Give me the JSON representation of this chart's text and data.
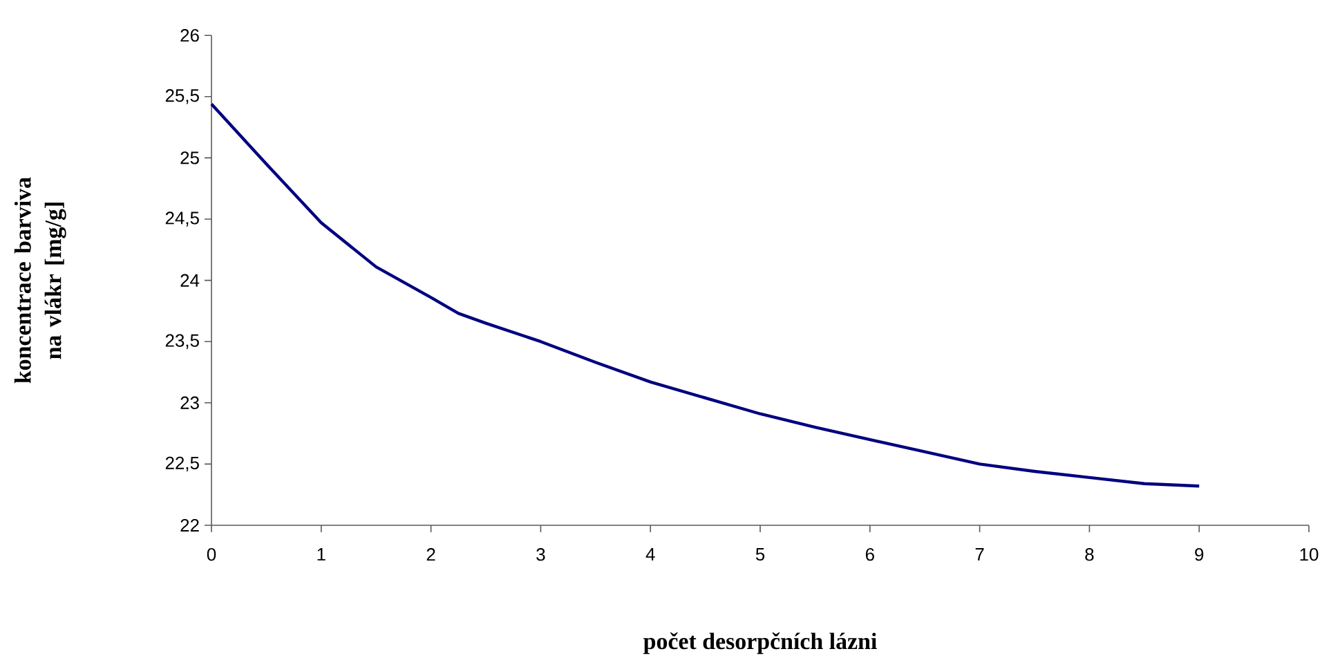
{
  "chart_data": {
    "type": "line",
    "xlabel": "počet desorpčních lázni",
    "ylabel": "koncentrace barviva na vlákr [mg/g]",
    "series": [
      {
        "color": "#000080",
        "x": [
          0,
          0.5,
          1,
          1.5,
          2,
          2.25,
          2.5,
          3,
          3.5,
          4,
          4.5,
          5,
          5.5,
          6,
          6.5,
          7,
          7.5,
          8,
          8.5,
          9
        ],
        "values": [
          25.44,
          24.95,
          24.47,
          24.11,
          23.86,
          23.73,
          23.65,
          23.5,
          23.33,
          23.17,
          23.04,
          22.91,
          22.8,
          22.7,
          22.6,
          22.5,
          22.44,
          22.39,
          22.34,
          22.32
        ]
      }
    ],
    "xlim": [
      0,
      10
    ],
    "xticks": [
      0,
      1,
      2,
      3,
      4,
      5,
      6,
      7,
      8,
      9,
      10
    ],
    "ylim": [
      22,
      26
    ],
    "yticks": [
      22,
      {
        "value": 22.5,
        "label": "22,5"
      },
      23,
      {
        "value": 23.5,
        "label": "23,5"
      },
      24,
      {
        "value": 24.5,
        "label": "24,5"
      },
      25,
      {
        "value": 25.5,
        "label": "25,5"
      },
      26
    ],
    "grid": false,
    "marker": "none",
    "line_style": "solid"
  }
}
